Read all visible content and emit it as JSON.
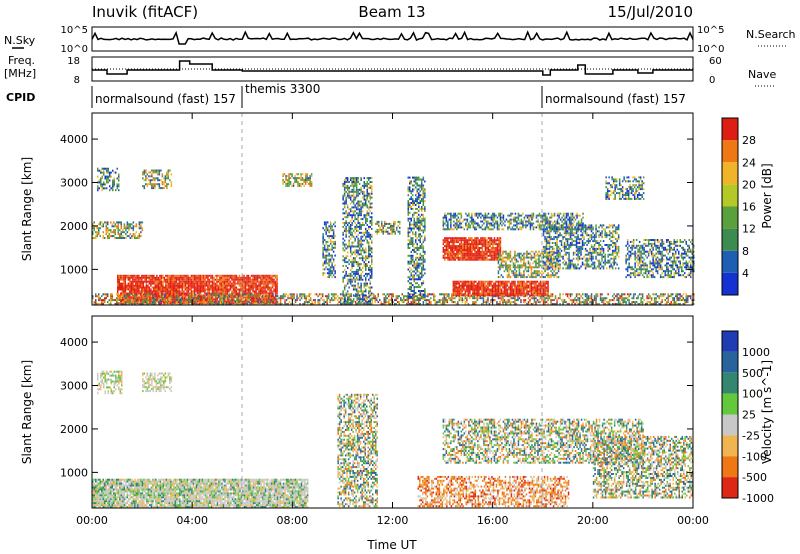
{
  "header": {
    "station": "Inuvik (fitACF)",
    "beam": "Beam 13",
    "date": "15/Jul/2010"
  },
  "top_panels": {
    "nsky_label": "N.Sky",
    "nsearch_label": "N.Search",
    "freq_label_1": "Freq.",
    "freq_label_2": "[MHz]",
    "nave_label": "Nave",
    "cpid_label": "CPID",
    "nsky_ticks": [
      "10^5",
      "10^0"
    ],
    "freq_ticks": [
      "18",
      "8"
    ],
    "nave_ticks": [
      "60",
      "0"
    ],
    "cpid_segments": [
      {
        "label": "normalsound (fast) 157",
        "start_h": 0,
        "end_h": 6
      },
      {
        "label": "themis 3300",
        "start_h": 6,
        "end_h": 18
      },
      {
        "label": "normalsound (fast) 157",
        "start_h": 18,
        "end_h": 24
      }
    ]
  },
  "chart_data": [
    {
      "type": "heatmap",
      "title": "Power",
      "ylabel": "Slant Range [km]",
      "xlabel": "Time UT",
      "x_ticks": [
        "00:00",
        "04:00",
        "08:00",
        "12:00",
        "16:00",
        "20:00",
        "00:00"
      ],
      "y_ticks": [
        1000,
        2000,
        3000,
        4000
      ],
      "ylim": [
        180,
        4600
      ],
      "xlim_hours": [
        0,
        24
      ],
      "colorbar": {
        "label": "Power [dB]",
        "ticks": [
          4,
          8,
          12,
          16,
          20,
          24,
          28
        ],
        "colors": [
          "#1432d2",
          "#1e5fb4",
          "#3c8c50",
          "#5aa03c",
          "#b4c828",
          "#f0b428",
          "#f07814",
          "#dc1e14"
        ]
      },
      "echo_regions": [
        {
          "t0": 1.0,
          "t1": 7.4,
          "r0": 200,
          "r1": 850,
          "level": "high"
        },
        {
          "t0": 0.0,
          "t1": 24.0,
          "r0": 180,
          "r1": 420,
          "level": "mixed"
        },
        {
          "t0": 0.2,
          "t1": 1.1,
          "r0": 2800,
          "r1": 3300,
          "level": "low"
        },
        {
          "t0": 2.0,
          "t1": 3.2,
          "r0": 2850,
          "r1": 3300,
          "level": "mid"
        },
        {
          "t0": 0.0,
          "t1": 2.0,
          "r0": 1700,
          "r1": 2100,
          "level": "mid"
        },
        {
          "t0": 7.6,
          "t1": 8.8,
          "r0": 2900,
          "r1": 3200,
          "level": "mid"
        },
        {
          "t0": 9.2,
          "t1": 9.7,
          "r0": 800,
          "r1": 2100,
          "level": "low"
        },
        {
          "t0": 10.0,
          "t1": 11.2,
          "r0": 200,
          "r1": 3100,
          "level": "low"
        },
        {
          "t0": 11.3,
          "t1": 12.3,
          "r0": 1800,
          "r1": 2100,
          "level": "mid"
        },
        {
          "t0": 12.6,
          "t1": 13.3,
          "r0": 300,
          "r1": 3100,
          "level": "low"
        },
        {
          "t0": 14.0,
          "t1": 16.3,
          "r0": 1200,
          "r1": 1700,
          "level": "high"
        },
        {
          "t0": 14.4,
          "t1": 18.2,
          "r0": 380,
          "r1": 700,
          "level": "high"
        },
        {
          "t0": 14.0,
          "t1": 19.6,
          "r0": 1900,
          "r1": 2300,
          "level": "low"
        },
        {
          "t0": 16.2,
          "t1": 18.6,
          "r0": 800,
          "r1": 1400,
          "level": "mid"
        },
        {
          "t0": 18.0,
          "t1": 21.0,
          "r0": 1000,
          "r1": 2000,
          "level": "low"
        },
        {
          "t0": 21.3,
          "t1": 24.0,
          "r0": 800,
          "r1": 1700,
          "level": "low"
        },
        {
          "t0": 20.5,
          "t1": 22.0,
          "r0": 2600,
          "r1": 3100,
          "level": "low"
        }
      ]
    },
    {
      "type": "heatmap",
      "title": "Velocity",
      "ylabel": "Slant Range [km]",
      "xlabel": "Time UT",
      "x_ticks": [
        "00:00",
        "04:00",
        "08:00",
        "12:00",
        "16:00",
        "20:00",
        "00:00"
      ],
      "y_ticks": [
        1000,
        2000,
        3000,
        4000
      ],
      "ylim": [
        180,
        4600
      ],
      "xlim_hours": [
        0,
        24
      ],
      "colorbar": {
        "label": "Velocity [m s^-1]",
        "ticks": [
          1000,
          500,
          100,
          25,
          -25,
          -100,
          -500,
          -1000
        ],
        "colors": [
          "#1e3cb4",
          "#28649b",
          "#32876e",
          "#64c83c",
          "#c8c8c8",
          "#f0b450",
          "#f07814",
          "#dc2814"
        ]
      },
      "echo_regions": [
        {
          "t0": 0.0,
          "t1": 8.6,
          "r0": 180,
          "r1": 850,
          "level": "gray-green"
        },
        {
          "t0": 0.2,
          "t1": 1.2,
          "r0": 2800,
          "r1": 3300,
          "level": "gray"
        },
        {
          "t0": 2.0,
          "t1": 3.2,
          "r0": 2850,
          "r1": 3300,
          "level": "gray"
        },
        {
          "t0": 9.8,
          "t1": 11.4,
          "r0": 200,
          "r1": 2800,
          "level": "mixed"
        },
        {
          "t0": 13.0,
          "t1": 19.0,
          "r0": 200,
          "r1": 900,
          "level": "orange"
        },
        {
          "t0": 14.0,
          "t1": 22.0,
          "r0": 1200,
          "r1": 2200,
          "level": "mixed"
        },
        {
          "t0": 20.0,
          "t1": 24.0,
          "r0": 400,
          "r1": 1800,
          "level": "mixed"
        }
      ]
    }
  ]
}
